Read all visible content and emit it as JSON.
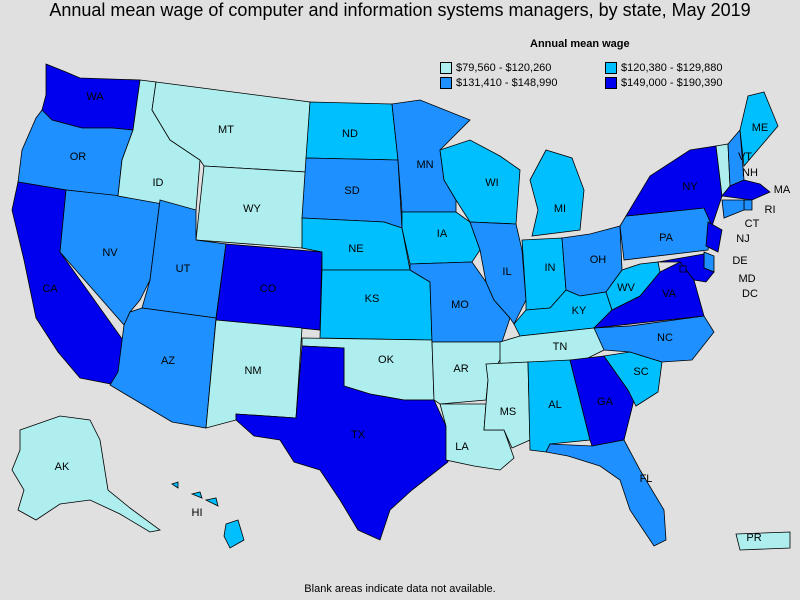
{
  "title": "Annual mean wage of computer and information systems managers, by state, May 2019",
  "legend": {
    "title": "Annual mean wage",
    "items": [
      {
        "label": "$79,560 - $120,260",
        "color": "#aeeeee"
      },
      {
        "label": "$120,380 - $129,880",
        "color": "#00bfff"
      },
      {
        "label": "$131,410 - $148,990",
        "color": "#1e90ff"
      },
      {
        "label": "$149,000 - $190,390",
        "color": "#0000ee"
      }
    ]
  },
  "footnote": "Blank areas indicate data not available.",
  "states": {
    "WA": 3,
    "OR": 2,
    "CA": 3,
    "NV": 2,
    "ID": 0,
    "MT": 0,
    "WY": 0,
    "UT": 2,
    "AZ": 2,
    "CO": 3,
    "NM": 0,
    "ND": 1,
    "SD": 2,
    "NE": 1,
    "KS": 1,
    "OK": 0,
    "TX": 3,
    "MN": 2,
    "IA": 1,
    "MO": 2,
    "AR": 0,
    "LA": 0,
    "WI": 1,
    "IL": 2,
    "MI": 1,
    "IN": 1,
    "OH": 2,
    "KY": 1,
    "TN": 0,
    "MS": 0,
    "AL": 1,
    "GA": 3,
    "FL": 2,
    "SC": 1,
    "NC": 2,
    "VA": 3,
    "WV": 1,
    "PA": 2,
    "NY": 3,
    "ME": 1,
    "VT": 0,
    "NH": 2,
    "MA": 3,
    "RI": 2,
    "CT": 2,
    "NJ": 3,
    "DE": 2,
    "MD": 3,
    "DC": 3,
    "AK": 0,
    "HI": 1,
    "PR": 0
  }
}
